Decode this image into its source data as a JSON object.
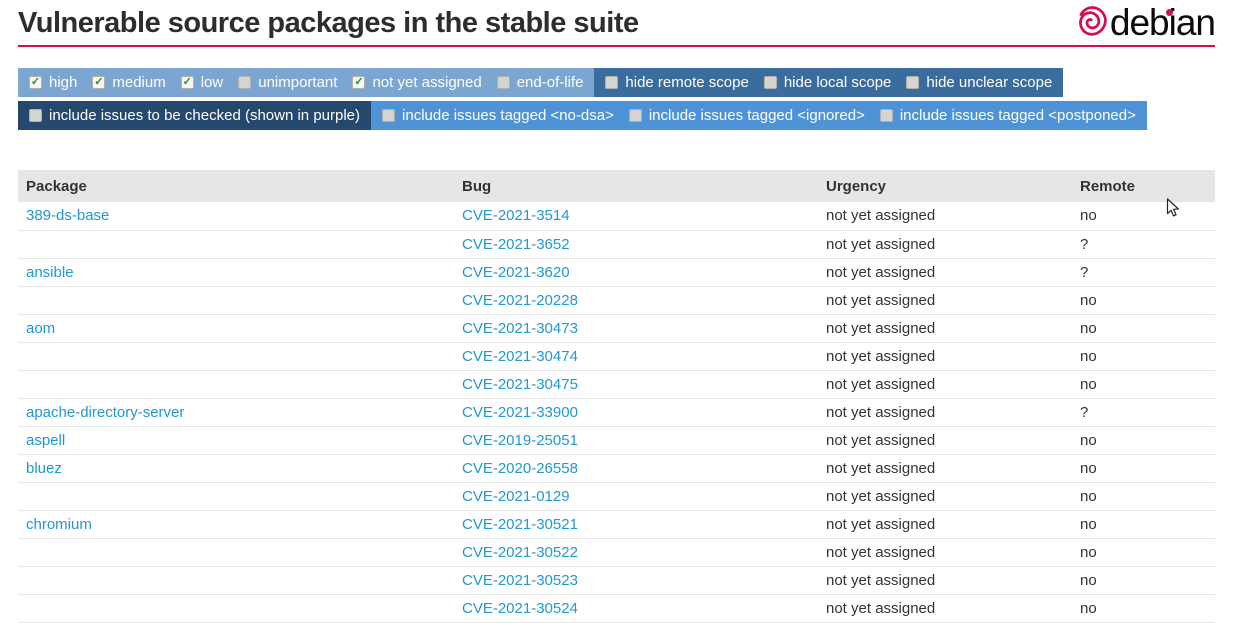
{
  "header": {
    "title": "Vulnerable source packages in the stable suite",
    "logo_text": "debian"
  },
  "filters": [
    {
      "groups": [
        {
          "tone": "light",
          "items": [
            {
              "label": "high",
              "checked": true
            },
            {
              "label": "medium",
              "checked": true
            },
            {
              "label": "low",
              "checked": true
            },
            {
              "label": "unimportant",
              "checked": false
            },
            {
              "label": "not yet assigned",
              "checked": true
            },
            {
              "label": "end-of-life",
              "checked": false
            }
          ]
        },
        {
          "tone": "steel",
          "items": [
            {
              "label": "hide remote scope",
              "checked": false
            },
            {
              "label": "hide local scope",
              "checked": false
            },
            {
              "label": "hide unclear scope",
              "checked": false
            }
          ]
        }
      ]
    },
    {
      "groups": [
        {
          "tone": "navy",
          "items": [
            {
              "label": "include issues to be checked (shown in purple)",
              "checked": false
            }
          ]
        },
        {
          "tone": "bright",
          "items": [
            {
              "label": "include issues tagged <no-dsa>",
              "checked": false
            },
            {
              "label": "include issues tagged <ignored>",
              "checked": false
            },
            {
              "label": "include issues tagged <postponed>",
              "checked": false
            }
          ]
        }
      ]
    }
  ],
  "table": {
    "columns": [
      "Package",
      "Bug",
      "Urgency",
      "Remote"
    ],
    "rows": [
      {
        "package": "389-ds-base",
        "bug": "CVE-2021-3514",
        "urgency": "not yet assigned",
        "remote": "no"
      },
      {
        "package": "",
        "bug": "CVE-2021-3652",
        "urgency": "not yet assigned",
        "remote": "?"
      },
      {
        "package": "ansible",
        "bug": "CVE-2021-3620",
        "urgency": "not yet assigned",
        "remote": "?"
      },
      {
        "package": "",
        "bug": "CVE-2021-20228",
        "urgency": "not yet assigned",
        "remote": "no"
      },
      {
        "package": "aom",
        "bug": "CVE-2021-30473",
        "urgency": "not yet assigned",
        "remote": "no"
      },
      {
        "package": "",
        "bug": "CVE-2021-30474",
        "urgency": "not yet assigned",
        "remote": "no"
      },
      {
        "package": "",
        "bug": "CVE-2021-30475",
        "urgency": "not yet assigned",
        "remote": "no"
      },
      {
        "package": "apache-directory-server",
        "bug": "CVE-2021-33900",
        "urgency": "not yet assigned",
        "remote": "?"
      },
      {
        "package": "aspell",
        "bug": "CVE-2019-25051",
        "urgency": "not yet assigned",
        "remote": "no"
      },
      {
        "package": "bluez",
        "bug": "CVE-2020-26558",
        "urgency": "not yet assigned",
        "remote": "no"
      },
      {
        "package": "",
        "bug": "CVE-2021-0129",
        "urgency": "not yet assigned",
        "remote": "no"
      },
      {
        "package": "chromium",
        "bug": "CVE-2021-30521",
        "urgency": "not yet assigned",
        "remote": "no"
      },
      {
        "package": "",
        "bug": "CVE-2021-30522",
        "urgency": "not yet assigned",
        "remote": "no"
      },
      {
        "package": "",
        "bug": "CVE-2021-30523",
        "urgency": "not yet assigned",
        "remote": "no"
      },
      {
        "package": "",
        "bug": "CVE-2021-30524",
        "urgency": "not yet assigned",
        "remote": "no"
      }
    ]
  },
  "colors": {
    "accent": "#d70a53",
    "link": "#2397d3",
    "header-bg": "#e6e6e6",
    "f-light": "#7ba6d1",
    "f-steel": "#3a6c9e",
    "f-navy": "#25486f",
    "f-bright": "#4e93d8"
  }
}
